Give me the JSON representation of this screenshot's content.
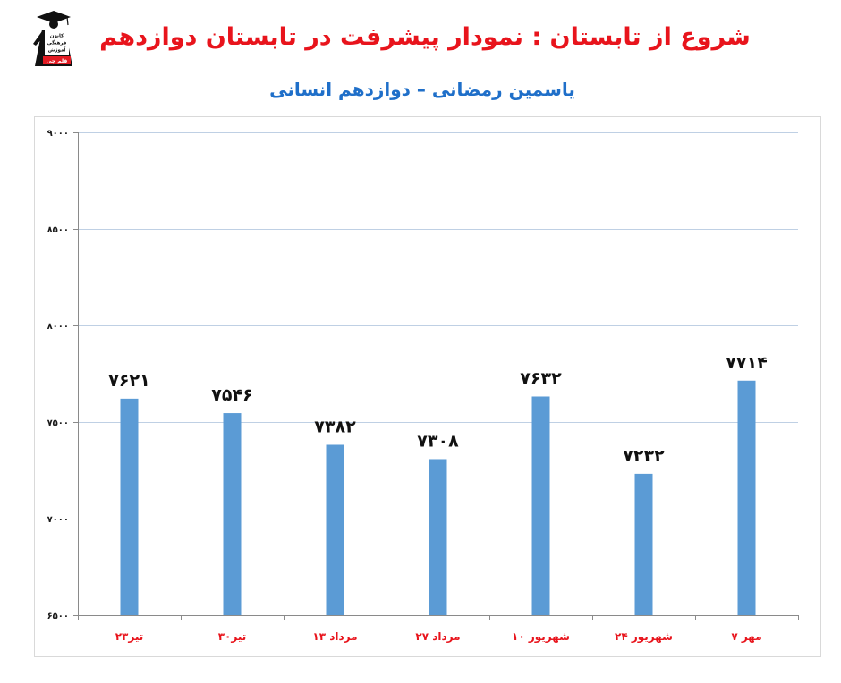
{
  "logo": {
    "lines": [
      "کانون",
      "فرهنگی",
      "آموزش"
    ],
    "badge": "قلم چی"
  },
  "colors": {
    "title": "#e8141c",
    "subtitle": "#1f6fc9",
    "bar": "#5b9bd5",
    "category_label": "#e8141c",
    "gridline": "#bfd0e4",
    "axis": "#8a8a8a",
    "frame": "#d9d9d9",
    "logo_badge": "#e31b23"
  },
  "chart_data": {
    "type": "bar",
    "title": "شروع از تابستان : نمودار پیشرفت در تابستان دوازدهم",
    "subtitle": "یاسمین رمضانی – دوازدهم انسانی",
    "xlabel": "",
    "ylabel": "",
    "categories": [
      "۲۳تیر",
      "۳۰تیر",
      "۱۳ مرداد",
      "۲۷ مرداد",
      "۱۰ شهریور",
      "۲۴ شهریور",
      "۷ مهر"
    ],
    "values": [
      7621,
      7546,
      7382,
      7308,
      7632,
      7232,
      7714
    ],
    "value_labels": [
      "۷۶۲۱",
      "۷۵۴۶",
      "۷۳۸۲",
      "۷۳۰۸",
      "۷۶۳۲",
      "۷۲۳۲",
      "۷۷۱۴"
    ],
    "ylim": [
      6500,
      9000
    ],
    "y_ticks": [
      6500,
      7000,
      7500,
      8000,
      8500,
      9000
    ],
    "y_tick_labels": [
      "۶۵۰۰",
      "۷۰۰۰",
      "۷۵۰۰",
      "۸۰۰۰",
      "۸۵۰۰",
      "۹۰۰۰"
    ],
    "grid": true,
    "legend": "none"
  }
}
